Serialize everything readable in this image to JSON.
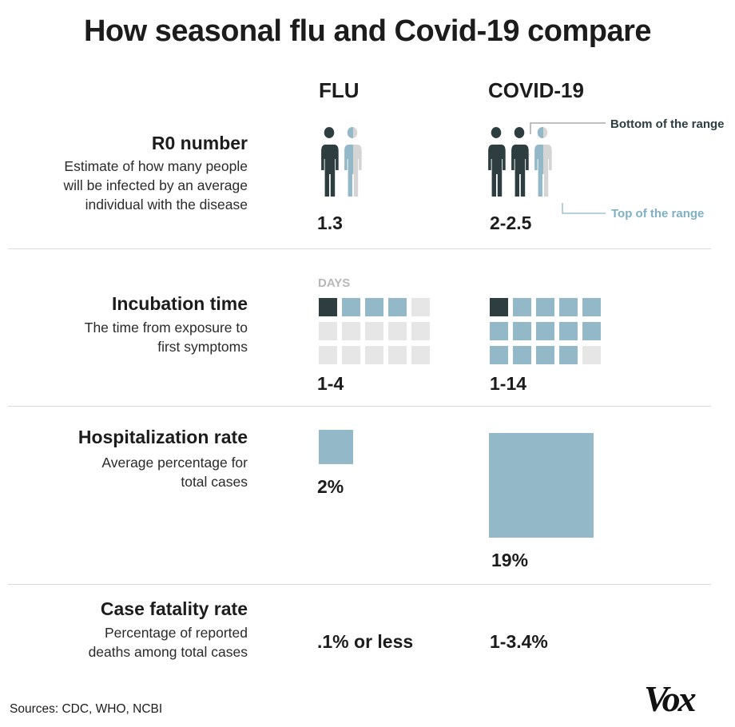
{
  "title": "How seasonal flu and Covid-19 compare",
  "columns": {
    "flu": "FLU",
    "covid": "COVID-19"
  },
  "rows": {
    "r0": {
      "heading": "R0 number",
      "description": "Estimate of how many people\nwill be infected by an average\nindividual with the disease",
      "flu_value": "1.3",
      "covid_value": "2-2.5"
    },
    "incubation": {
      "heading": "Incubation time",
      "description": "The time from exposure to\nfirst symptoms",
      "flu_value": "1-4",
      "covid_value": "1-14",
      "days_label": "DAYS"
    },
    "hospitalization": {
      "heading": "Hospitalization rate",
      "description": "Average percentage for\ntotal cases",
      "flu_value": "2%",
      "covid_value": "19%"
    },
    "fatality": {
      "heading": "Case fatality rate",
      "description": "Percentage of reported\ndeaths among total cases",
      "flu_value": ".1% or less",
      "covid_value": "1-3.4%"
    }
  },
  "annotations": {
    "bottom": "Bottom of the range",
    "top": "Top of the range"
  },
  "sources": "Sources: CDC, WHO,  NCBI",
  "logo": "Vox",
  "colors": {
    "dark": "#2d3d40",
    "light": "#93b8c7",
    "grey": "#d5d5d5",
    "cell_grey": "#e6e6e6",
    "annot_light": "#7fb0c4"
  },
  "chart_data": [
    {
      "type": "table",
      "metric": "R0 number",
      "flu": {
        "min": 1.3,
        "max": 1.3
      },
      "covid": {
        "min": 2,
        "max": 2.5
      }
    },
    {
      "type": "table",
      "metric": "Incubation time",
      "unit": "days",
      "grid_cells": 15,
      "flu": {
        "min": 1,
        "max": 4
      },
      "covid": {
        "min": 1,
        "max": 14
      }
    },
    {
      "type": "table",
      "metric": "Hospitalization rate",
      "unit": "%",
      "flu": 2,
      "covid": 19
    },
    {
      "type": "table",
      "metric": "Case fatality rate",
      "unit": "%",
      "flu": {
        "max": 0.1
      },
      "covid": {
        "min": 1,
        "max": 3.4
      }
    }
  ]
}
